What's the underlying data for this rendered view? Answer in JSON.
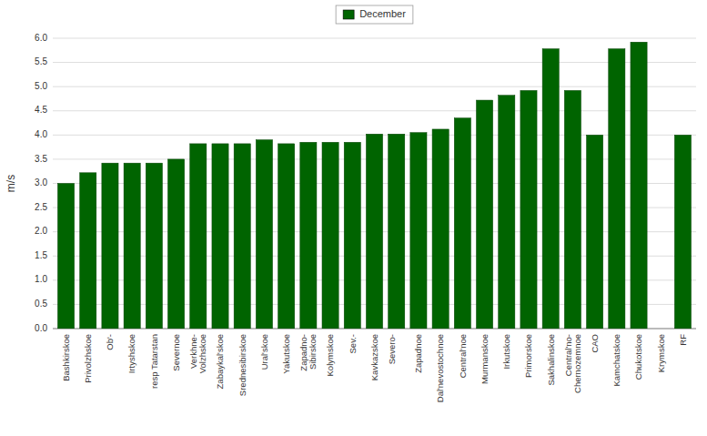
{
  "chart_data": {
    "type": "bar",
    "categories": [
      "Bashkirskoe",
      "Privolzhskoe",
      "Ob'-",
      "Irtyshskoe",
      "resp Tatarstan",
      "Severnoe",
      "Verkhnе-\nVolzhskoe",
      "Zabaykal'skoe",
      "Srednesibirskoe",
      "Ural'skoe",
      "Yakutskoe",
      "Zapadno-\nSibirskoe",
      "Kolymskoe",
      "Sev.-",
      "Kavkazskoe",
      "Severo-\n",
      "Zapadnoe",
      "Dal'nevostochnoe",
      "Central'noe",
      "Murmanskoe",
      "Irkutskoe",
      "Primorskoe",
      "Sakhalinskoe",
      "Central'no-\nChernozemnoe",
      "CAO",
      "Kamchatskoe",
      "Chukotskoe",
      "Krymskoe",
      "RF"
    ],
    "series": [
      {
        "name": "December",
        "color": "#006400",
        "values": [
          3.0,
          3.22,
          3.42,
          3.42,
          3.42,
          3.5,
          3.82,
          3.82,
          3.82,
          3.9,
          3.82,
          3.85,
          3.85,
          3.85,
          4.02,
          4.02,
          4.05,
          4.12,
          4.35,
          4.72,
          4.82,
          4.92,
          5.78,
          4.92,
          4.0,
          5.78,
          5.92,
          0.0,
          4.0
        ]
      }
    ],
    "ylabel": "m/s",
    "ylim": [
      0,
      6
    ],
    "yticks": [
      {
        "value": 0,
        "label": "0.0"
      },
      0.5,
      {
        "value": 1,
        "label": "1.0"
      },
      1.5,
      {
        "value": 2,
        "label": "2.0"
      },
      2.5,
      {
        "value": 3,
        "label": "3.0"
      },
      3.5,
      {
        "value": 4,
        "label": "4.0"
      },
      4.5,
      {
        "value": 5,
        "label": "5.0"
      },
      5.5,
      {
        "value": 6,
        "label": "6.0"
      }
    ],
    "grid": true,
    "legend": "top"
  }
}
